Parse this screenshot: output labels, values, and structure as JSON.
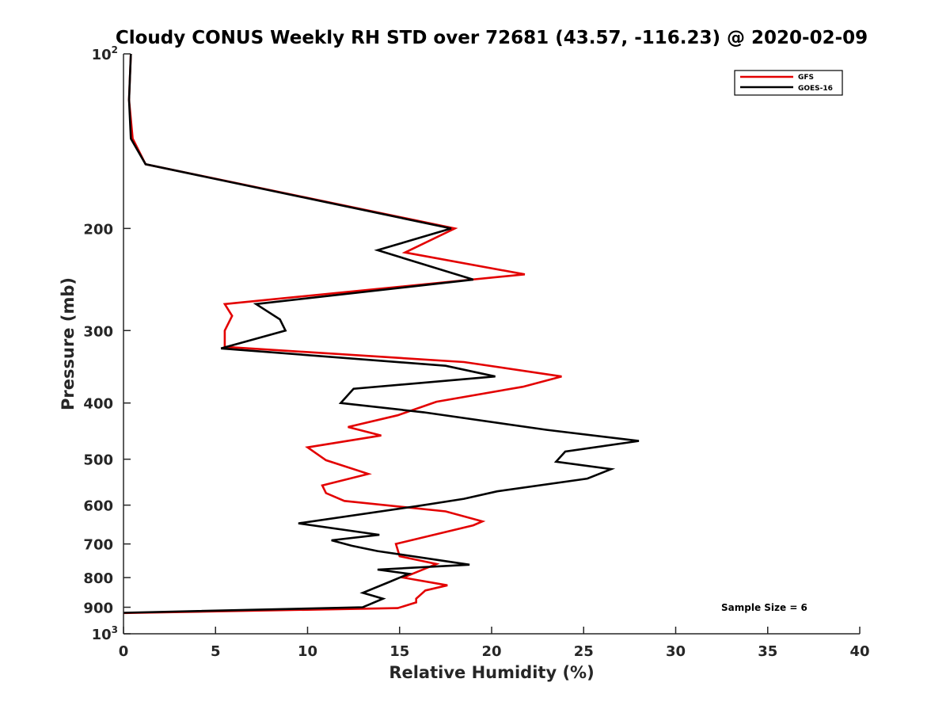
{
  "chart_data": {
    "type": "line",
    "title": "Cloudy CONUS Weekly RH STD over 72681 (43.57, -116.23) @ 2020-02-09",
    "xlabel": "Relative Humidity (%)",
    "ylabel": "Pressure (mb)",
    "xlim": [
      0,
      40
    ],
    "ylim": [
      100,
      1000
    ],
    "y_scale": "log",
    "y_reversed": true,
    "x_ticks": [
      0,
      5,
      10,
      15,
      20,
      25,
      30,
      35,
      40
    ],
    "y_ticks": [
      {
        "value": 100,
        "base": "10",
        "exp": "2"
      },
      {
        "value": 200,
        "label": "200"
      },
      {
        "value": 300,
        "label": "300"
      },
      {
        "value": 400,
        "label": "400"
      },
      {
        "value": 500,
        "label": "500"
      },
      {
        "value": 600,
        "label": "600"
      },
      {
        "value": 700,
        "label": "700"
      },
      {
        "value": 800,
        "label": "800"
      },
      {
        "value": 900,
        "label": "900"
      },
      {
        "value": 1000,
        "base": "10",
        "exp": "3"
      }
    ],
    "grid": false,
    "legend_position": "top-right",
    "annotation": "Sample Size = 6",
    "series": [
      {
        "name": "GFS",
        "color": "#e30000",
        "points": [
          [
            0.4,
            100
          ],
          [
            0.3,
            120
          ],
          [
            0.5,
            140
          ],
          [
            1.2,
            155
          ],
          [
            18.0,
            200
          ],
          [
            15.3,
            220
          ],
          [
            21.8,
            240
          ],
          [
            5.5,
            270
          ],
          [
            5.9,
            283
          ],
          [
            5.5,
            300
          ],
          [
            5.5,
            320
          ],
          [
            18.5,
            340
          ],
          [
            23.8,
            360
          ],
          [
            21.7,
            375
          ],
          [
            17.0,
            398
          ],
          [
            14.9,
            420
          ],
          [
            12.2,
            440
          ],
          [
            14.0,
            455
          ],
          [
            10.0,
            477
          ],
          [
            11.0,
            502
          ],
          [
            13.3,
            530
          ],
          [
            10.8,
            555
          ],
          [
            11.0,
            572
          ],
          [
            12.0,
            590
          ],
          [
            17.5,
            615
          ],
          [
            19.5,
            640
          ],
          [
            19.0,
            650
          ],
          [
            14.8,
            700
          ],
          [
            15.0,
            735
          ],
          [
            17.0,
            758
          ],
          [
            15.2,
            800
          ],
          [
            17.6,
            825
          ],
          [
            16.4,
            842
          ],
          [
            15.9,
            870
          ],
          [
            15.9,
            883
          ],
          [
            14.9,
            903
          ],
          [
            0.0,
            921
          ]
        ]
      },
      {
        "name": "GOES-16",
        "color": "#000000",
        "points": [
          [
            0.4,
            100
          ],
          [
            0.3,
            120
          ],
          [
            0.4,
            140
          ],
          [
            1.2,
            155
          ],
          [
            17.8,
            200
          ],
          [
            13.8,
            218
          ],
          [
            19.0,
            245
          ],
          [
            7.2,
            270
          ],
          [
            8.5,
            287
          ],
          [
            8.8,
            300
          ],
          [
            5.3,
            322
          ],
          [
            17.5,
            345
          ],
          [
            20.2,
            360
          ],
          [
            12.5,
            378
          ],
          [
            11.8,
            400
          ],
          [
            16.3,
            415
          ],
          [
            23.0,
            445
          ],
          [
            28.0,
            465
          ],
          [
            24.0,
            485
          ],
          [
            23.5,
            505
          ],
          [
            26.5,
            520
          ],
          [
            25.2,
            540
          ],
          [
            20.3,
            568
          ],
          [
            18.5,
            585
          ],
          [
            16.0,
            602
          ],
          [
            9.5,
            645
          ],
          [
            13.9,
            675
          ],
          [
            11.3,
            690
          ],
          [
            12.4,
            705
          ],
          [
            13.8,
            720
          ],
          [
            18.8,
            760
          ],
          [
            13.8,
            775
          ],
          [
            15.5,
            788
          ],
          [
            14.4,
            815
          ],
          [
            13.0,
            850
          ],
          [
            14.1,
            870
          ],
          [
            13.0,
            900
          ],
          [
            0.0,
            920
          ]
        ]
      }
    ]
  }
}
